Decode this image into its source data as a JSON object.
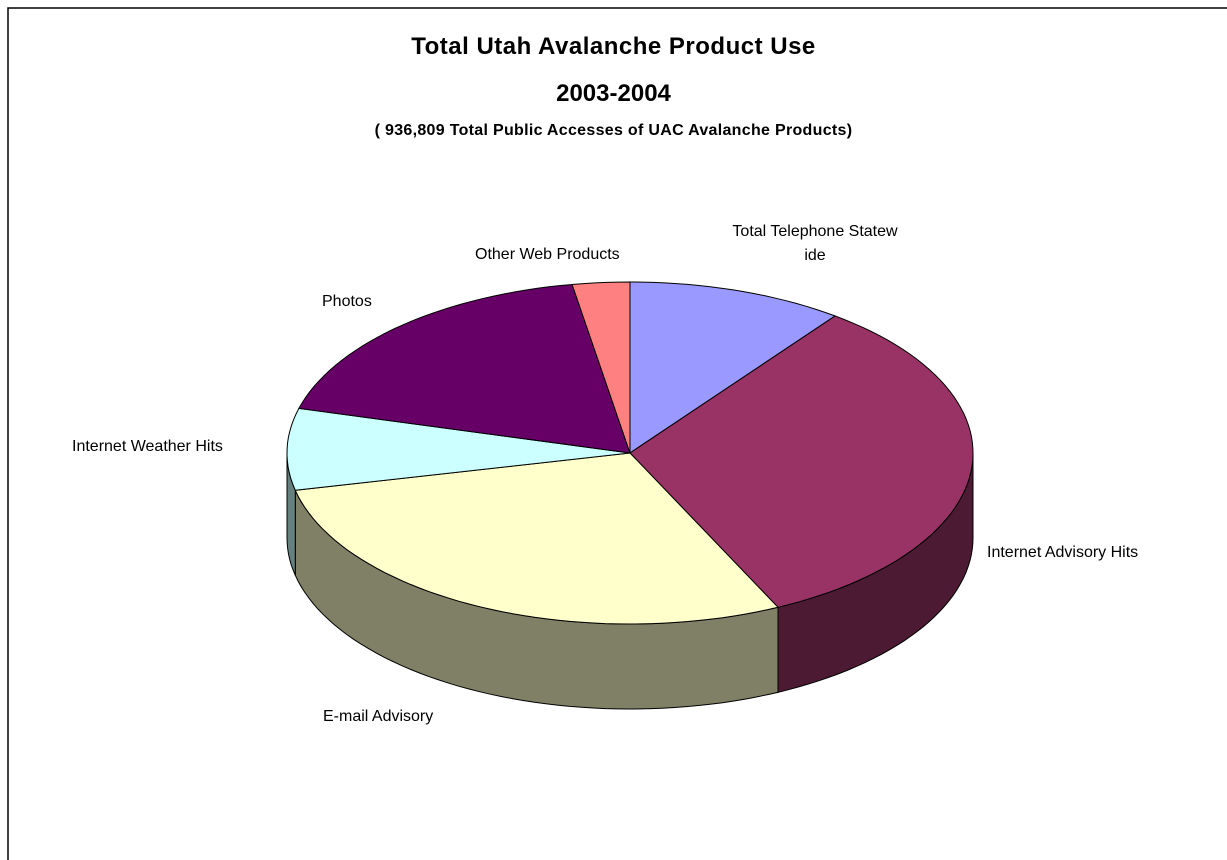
{
  "chart_data": {
    "type": "pie3d",
    "title": "Total Utah Avalanche Product Use",
    "title_line2": "2003-2004",
    "subtitle": "( 936,809 Total Public Accesses of UAC Avalanche Products)",
    "categories": [
      "Total Telephone Statew ide",
      "Internet Advisory Hits",
      "E-mail Advisory",
      "Internet Weather Hits",
      "Photos",
      "Other Web Products"
    ],
    "values": [
      10.2,
      32.7,
      28.6,
      7.7,
      18.1,
      2.7
    ],
    "colors": [
      "#9999ff",
      "#993366",
      "#ffffcc",
      "#ccffff",
      "#660066",
      "#ff8080"
    ],
    "side_colors": [
      "#4d4d80",
      "#4d1a33",
      "#808066",
      "#668080",
      "#330033",
      "#804040"
    ]
  }
}
